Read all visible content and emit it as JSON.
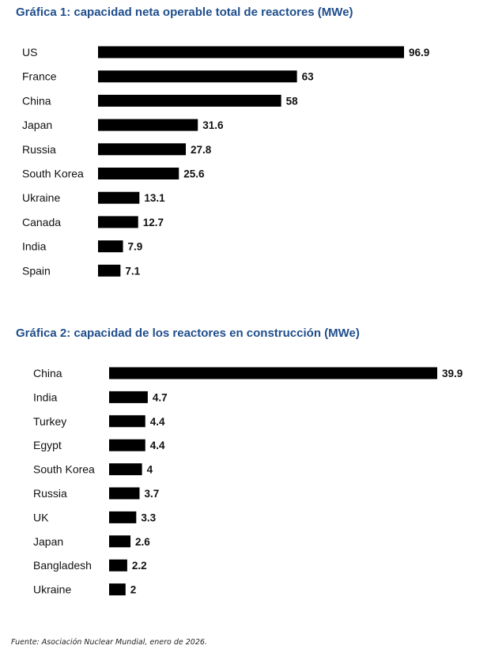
{
  "chart_data": [
    {
      "type": "bar",
      "orientation": "horizontal",
      "title": "Gráfica 1: capacidad neta operable total de reactores (MWe)",
      "categories": [
        "US",
        "France",
        "China",
        "Japan",
        "Russia",
        "South Korea",
        "Ukraine",
        "Canada",
        "India",
        "Spain"
      ],
      "values": [
        96.9,
        63,
        58,
        31.6,
        27.8,
        25.6,
        13.1,
        12.7,
        7.9,
        7.1
      ],
      "data_labels": [
        "96.9",
        "63",
        "58",
        "31.6",
        "27.8",
        "25.6",
        "13.1",
        "12.7",
        "7.9",
        "7.1"
      ],
      "xlim": [
        0,
        96.9
      ],
      "grid": false,
      "legend": "none",
      "bar_color": "#000000"
    },
    {
      "type": "bar",
      "orientation": "horizontal",
      "title": "Gráfica 2: capacidad de los reactores en construcción (MWe)",
      "categories": [
        "China",
        "India",
        "Turkey",
        "Egypt",
        "South Korea",
        "Russia",
        "UK",
        "Japan",
        "Bangladesh",
        "Ukraine"
      ],
      "values": [
        39.9,
        4.7,
        4.4,
        4.4,
        4,
        3.7,
        3.3,
        2.6,
        2.2,
        2
      ],
      "data_labels": [
        "39.9",
        "4.7",
        "4.4",
        "4.4",
        "4",
        "3.7",
        "3.3",
        "2.6",
        "2.2",
        "2"
      ],
      "xlim": [
        0,
        39.9
      ],
      "grid": false,
      "legend": "none",
      "bar_color": "#000000"
    }
  ],
  "source": "Fuente: Asociación Nuclear Mundial, enero de 2026.",
  "colors": {
    "title": "#1f4e8c",
    "bars": "#000000",
    "text": "#111111"
  }
}
